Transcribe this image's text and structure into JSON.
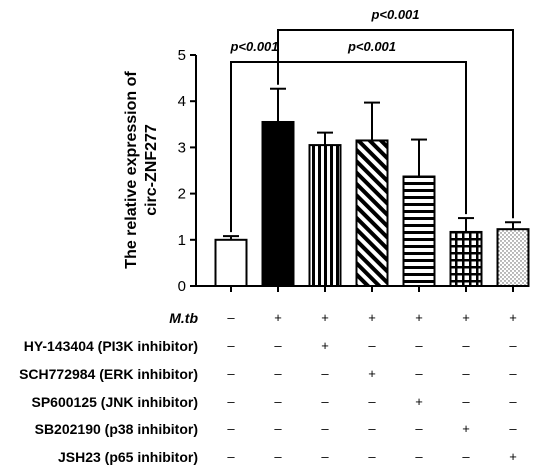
{
  "chart_data": {
    "type": "bar",
    "ylabel_line1": "The relative expression of",
    "ylabel_line2": "circ-ZNF277",
    "ylim": [
      0,
      5
    ],
    "yticks": [
      "0",
      "1",
      "2",
      "3",
      "4",
      "5"
    ],
    "grid": false,
    "bars": [
      {
        "value": 1.0,
        "error": 0.08,
        "pattern": "white"
      },
      {
        "value": 3.55,
        "error": 0.72,
        "pattern": "black"
      },
      {
        "value": 3.05,
        "error": 0.27,
        "pattern": "vertical-lines"
      },
      {
        "value": 3.15,
        "error": 0.82,
        "pattern": "diagonal-lines"
      },
      {
        "value": 2.37,
        "error": 0.8,
        "pattern": "horizontal-lines"
      },
      {
        "value": 1.17,
        "error": 0.3,
        "pattern": "grid"
      },
      {
        "value": 1.23,
        "error": 0.15,
        "pattern": "dots"
      }
    ],
    "annotations": [
      {
        "text": "p<0.001",
        "from": 0,
        "to": 1
      },
      {
        "text": "p<0.001",
        "from": 1,
        "to": 5
      },
      {
        "text": "p<0.001",
        "from": 1,
        "to": 6
      }
    ],
    "treatment_table": [
      {
        "label": "M.tb",
        "signs": [
          "–",
          "+",
          "+",
          "+",
          "+",
          "+",
          "+"
        ]
      },
      {
        "label": "HY-143404 (PI3K inhibitor)",
        "signs": [
          "–",
          "–",
          "+",
          "–",
          "–",
          "–",
          "–"
        ]
      },
      {
        "label": "SCH772984 (ERK inhibitor)",
        "signs": [
          "–",
          "–",
          "–",
          "+",
          "–",
          "–",
          "–"
        ]
      },
      {
        "label": "SP600125 (JNK inhibitor)",
        "signs": [
          "–",
          "–",
          "–",
          "–",
          "+",
          "–",
          "–"
        ]
      },
      {
        "label": "SB202190 (p38 inhibitor)",
        "signs": [
          "–",
          "–",
          "–",
          "–",
          "–",
          "+",
          "–"
        ]
      },
      {
        "label": "JSH23 (p65 inhibitor)",
        "signs": [
          "–",
          "–",
          "–",
          "–",
          "–",
          "–",
          "+"
        ]
      }
    ]
  }
}
